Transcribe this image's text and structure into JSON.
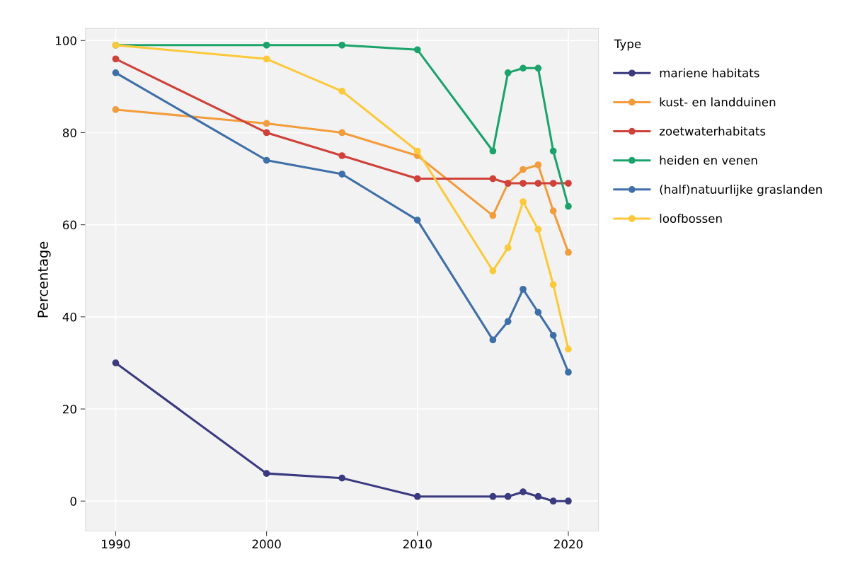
{
  "chart_data": {
    "type": "line",
    "ylabel": "Percentage",
    "legend_title": "Type",
    "x": [
      1990,
      2000,
      2005,
      2010,
      2015,
      2016,
      2017,
      2018,
      2019,
      2020
    ],
    "series": [
      {
        "name": "mariene habitats",
        "color": "#3b3a80",
        "values": [
          30,
          6,
          5,
          1,
          1,
          1,
          2,
          1,
          0,
          0
        ]
      },
      {
        "name": "kust- en landduinen",
        "color": "#f39c3c",
        "values": [
          85,
          82,
          80,
          75,
          62,
          69,
          72,
          73,
          63,
          54
        ]
      },
      {
        "name": "zoetwaterhabitats",
        "color": "#d0413a",
        "values": [
          96,
          80,
          75,
          70,
          70,
          69,
          69,
          69,
          69,
          69
        ]
      },
      {
        "name": "heiden en venen",
        "color": "#1aa36b",
        "values": [
          99,
          99,
          99,
          98,
          76,
          93,
          94,
          94,
          76,
          64
        ]
      },
      {
        "name": "(half)natuurlijke graslanden",
        "color": "#3f6fa8",
        "values": [
          93,
          74,
          71,
          61,
          35,
          39,
          46,
          41,
          36,
          28
        ]
      },
      {
        "name": "loofbossen",
        "color": "#fcc93a",
        "values": [
          99,
          96,
          89,
          76,
          50,
          55,
          65,
          59,
          47,
          33
        ]
      }
    ],
    "xlim": [
      1988,
      2022
    ],
    "xticks": [
      1990,
      2000,
      2010,
      2020
    ],
    "ylim": [
      -6.5,
      102.6
    ],
    "yticks": [
      0,
      20,
      40,
      60,
      80,
      100
    ],
    "grid": true,
    "legend": "top right",
    "marker": "circle",
    "line_style": "solid"
  }
}
